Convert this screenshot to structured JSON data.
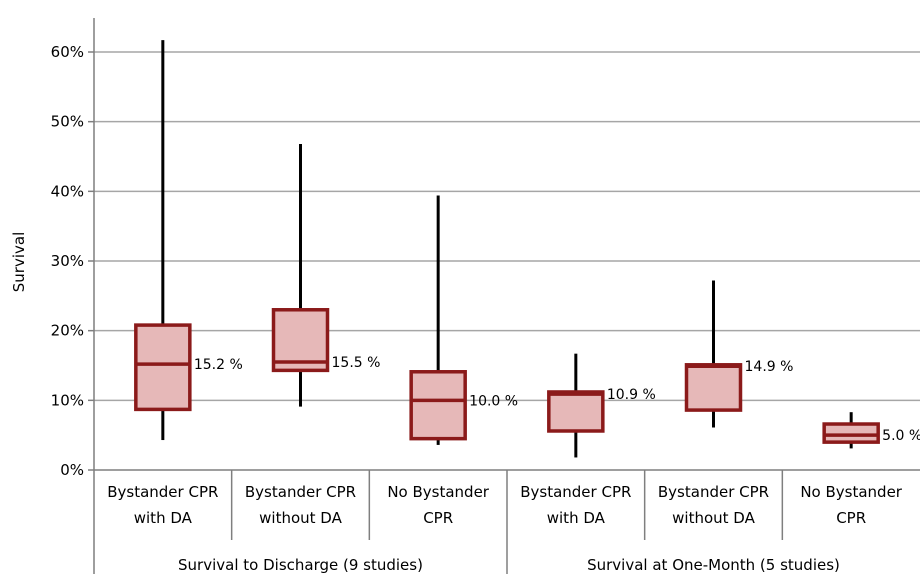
{
  "chart_data": {
    "type": "box",
    "ylabel": "Survival",
    "ylim": [
      0,
      65
    ],
    "yticks": [
      0,
      10,
      20,
      30,
      40,
      50,
      60
    ],
    "ytick_labels": [
      "0%",
      "10%",
      "20%",
      "30%",
      "40%",
      "50%",
      "60%"
    ],
    "grid": true,
    "groups": [
      {
        "label": "Survival to Discharge (9 studies)",
        "start": 0,
        "count": 3
      },
      {
        "label": "Survival at One-Month (5 studies)",
        "start": 3,
        "count": 3
      }
    ],
    "boxes": [
      {
        "label_lines": [
          "Bystander CPR",
          "with DA"
        ],
        "min": 4.3,
        "q1": 8.7,
        "median": 15.2,
        "q3": 20.8,
        "max": 61.7,
        "median_label": "15.2 %"
      },
      {
        "label_lines": [
          "Bystander CPR",
          "without DA"
        ],
        "min": 9.1,
        "q1": 14.3,
        "median": 15.5,
        "q3": 23.0,
        "max": 46.8,
        "median_label": "15.5 %"
      },
      {
        "label_lines": [
          "No Bystander",
          "CPR"
        ],
        "min": 3.6,
        "q1": 4.5,
        "median": 10.0,
        "q3": 14.1,
        "max": 39.4,
        "median_label": "10.0 %"
      },
      {
        "label_lines": [
          "Bystander CPR",
          "with DA"
        ],
        "min": 1.8,
        "q1": 5.6,
        "median": 10.9,
        "q3": 11.2,
        "max": 16.7,
        "median_label": "10.9 %"
      },
      {
        "label_lines": [
          "Bystander CPR",
          "without DA"
        ],
        "min": 6.1,
        "q1": 8.6,
        "median": 14.9,
        "q3": 15.1,
        "max": 27.2,
        "median_label": "14.9 %"
      },
      {
        "label_lines": [
          "No Bystander",
          "CPR"
        ],
        "min": 3.1,
        "q1": 4.0,
        "median": 5.0,
        "q3": 6.6,
        "max": 8.3,
        "median_label": "5.0 %"
      }
    ],
    "colors": {
      "box_fill": "#e6b8b8",
      "box_stroke": "#8b1a1a",
      "whisker": "#000000",
      "grid": "#a6a6a6",
      "axis": "#7f7f7f"
    }
  }
}
